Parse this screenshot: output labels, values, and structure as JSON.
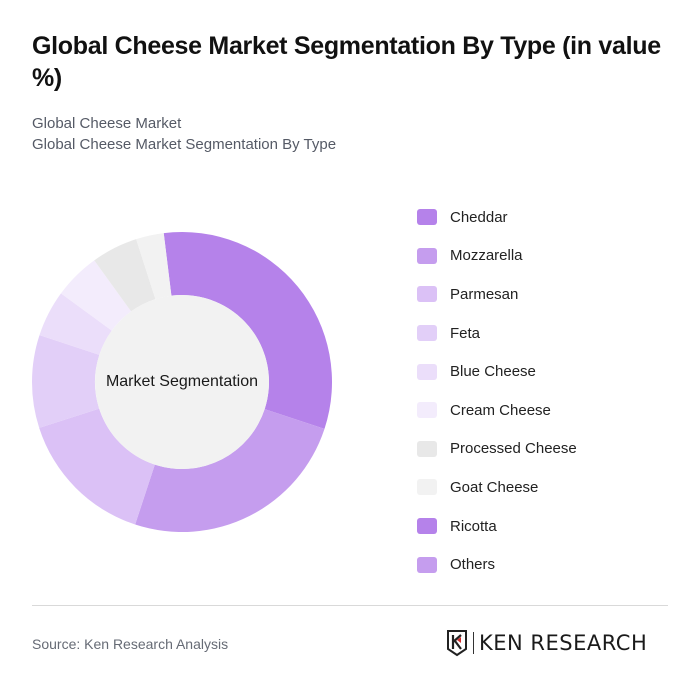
{
  "header": {
    "title": "Global Cheese Market Segmentation By Type (in value %)",
    "subtitle_line1": "Global Cheese Market",
    "subtitle_line2": "Global Cheese Market Segmentation By Type"
  },
  "chart": {
    "center_label": "Market Segmentation",
    "center_fill": "#f2f2f2"
  },
  "legend": {
    "items": [
      {
        "label": "Cheddar",
        "color": "#b582ea"
      },
      {
        "label": "Mozzarella",
        "color": "#c59dee"
      },
      {
        "label": "Parmesan",
        "color": "#dbc1f6"
      },
      {
        "label": "Feta",
        "color": "#e2cff8"
      },
      {
        "label": "Blue Cheese",
        "color": "#ebdefa"
      },
      {
        "label": "Cream Cheese",
        "color": "#f3ecfc"
      },
      {
        "label": "Processed Cheese",
        "color": "#e8e8e8"
      },
      {
        "label": "Goat Cheese",
        "color": "#f2f2f2"
      },
      {
        "label": "Ricotta",
        "color": "#b582ea"
      },
      {
        "label": "Others",
        "color": "#c59dee"
      }
    ]
  },
  "footer": {
    "source": "Source: Ken Research Analysis",
    "logo_text": "KEN RESEARCH",
    "logo_icon": "ken-research-k-shield-icon"
  },
  "chart_data": {
    "type": "pie",
    "variant": "donut",
    "title": "Global Cheese Market Segmentation By Type (in value %)",
    "subtitle": "Global Cheese Market Segmentation By Type",
    "center_text": "Market Segmentation",
    "start_angle_deg": -7,
    "direction": "clockwise",
    "categories": [
      "Cheddar",
      "Mozzarella",
      "Parmesan",
      "Feta",
      "Blue Cheese",
      "Cream Cheese",
      "Processed Cheese",
      "Goat Cheese",
      "Ricotta",
      "Others"
    ],
    "values": [
      32,
      25,
      15,
      10,
      5,
      5,
      5,
      3,
      0,
      0
    ],
    "colors": [
      "#b582ea",
      "#c59dee",
      "#dbc1f6",
      "#e2cff8",
      "#ebdefa",
      "#f3ecfc",
      "#e8e8e8",
      "#f2f2f2",
      "#b582ea",
      "#c59dee"
    ],
    "legend_position": "right",
    "unit": "%"
  }
}
